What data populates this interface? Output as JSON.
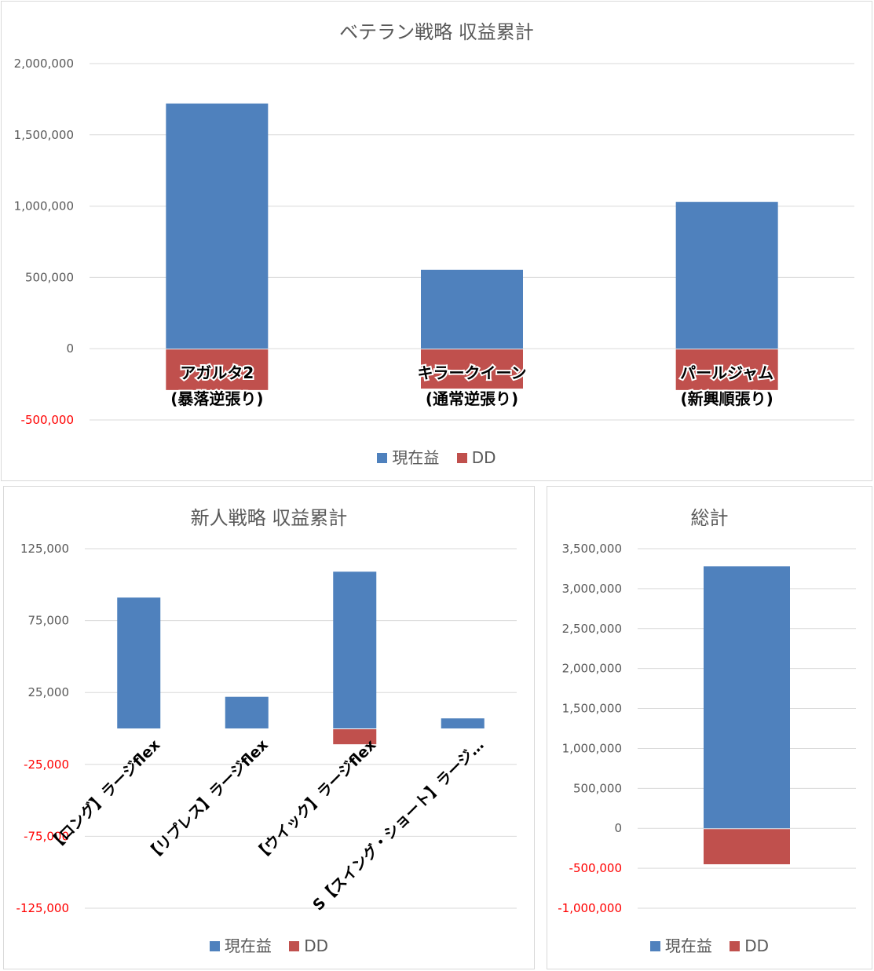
{
  "colors": {
    "profit": "#4F81BD",
    "dd": "#C0504D",
    "grid": "#D9D9D9",
    "axis_text": "#595959",
    "neg_text": "#FF0000"
  },
  "legend": {
    "profit": "現在益",
    "dd": "DD"
  },
  "chart_data": [
    {
      "type": "bar",
      "title": "ベテラン戦略 収益累計",
      "categories": [
        "アガルタ2\n(暴落逆張り)",
        "キラークイーン\n(通常逆張り)",
        "パールジャム\n(新興順張り)"
      ],
      "series": [
        {
          "name": "現在益",
          "values": [
            1720000,
            553000,
            1030000
          ]
        },
        {
          "name": "DD",
          "values": [
            -290000,
            -280000,
            -290000
          ]
        }
      ],
      "ylim": [
        -500000,
        2000000
      ],
      "yticks": [
        2000000,
        1500000,
        1000000,
        500000,
        0,
        -500000
      ],
      "ytick_labels": [
        "2,000,000",
        "1,500,000",
        "1,000,000",
        "500,000",
        "0",
        "-500,000"
      ],
      "grid": true,
      "legend_position": "bottom"
    },
    {
      "type": "bar",
      "title": "新人戦略 収益累計",
      "categories": [
        "【ロング】ラージflex",
        "【リプレス】ラージflex",
        "【ウイック】ラージflex",
        "S【スイング・ショート】ラージ…"
      ],
      "series": [
        {
          "name": "現在益",
          "values": [
            91000,
            22000,
            109000,
            7000
          ]
        },
        {
          "name": "DD",
          "values": [
            0,
            0,
            -11000,
            0
          ]
        }
      ],
      "ylim": [
        -125000,
        125000
      ],
      "yticks": [
        125000,
        75000,
        25000,
        -25000,
        -75000,
        -125000
      ],
      "ytick_labels": [
        "125,000",
        "75,000",
        "25,000",
        "-25,000",
        "-75,000",
        "-125,000"
      ],
      "grid": true,
      "legend_position": "bottom"
    },
    {
      "type": "bar",
      "title": "総計",
      "categories": [
        ""
      ],
      "series": [
        {
          "name": "現在益",
          "values": [
            3280000
          ]
        },
        {
          "name": "DD",
          "values": [
            -450000
          ]
        }
      ],
      "ylim": [
        -1000000,
        3500000
      ],
      "yticks": [
        3500000,
        3000000,
        2500000,
        2000000,
        1500000,
        1000000,
        500000,
        0,
        -500000,
        -1000000
      ],
      "ytick_labels": [
        "3,500,000",
        "3,000,000",
        "2,500,000",
        "2,000,000",
        "1,500,000",
        "1,000,000",
        "500,000",
        "0",
        "-500,000",
        "-1,000,000"
      ],
      "grid": true,
      "legend_position": "bottom"
    }
  ]
}
